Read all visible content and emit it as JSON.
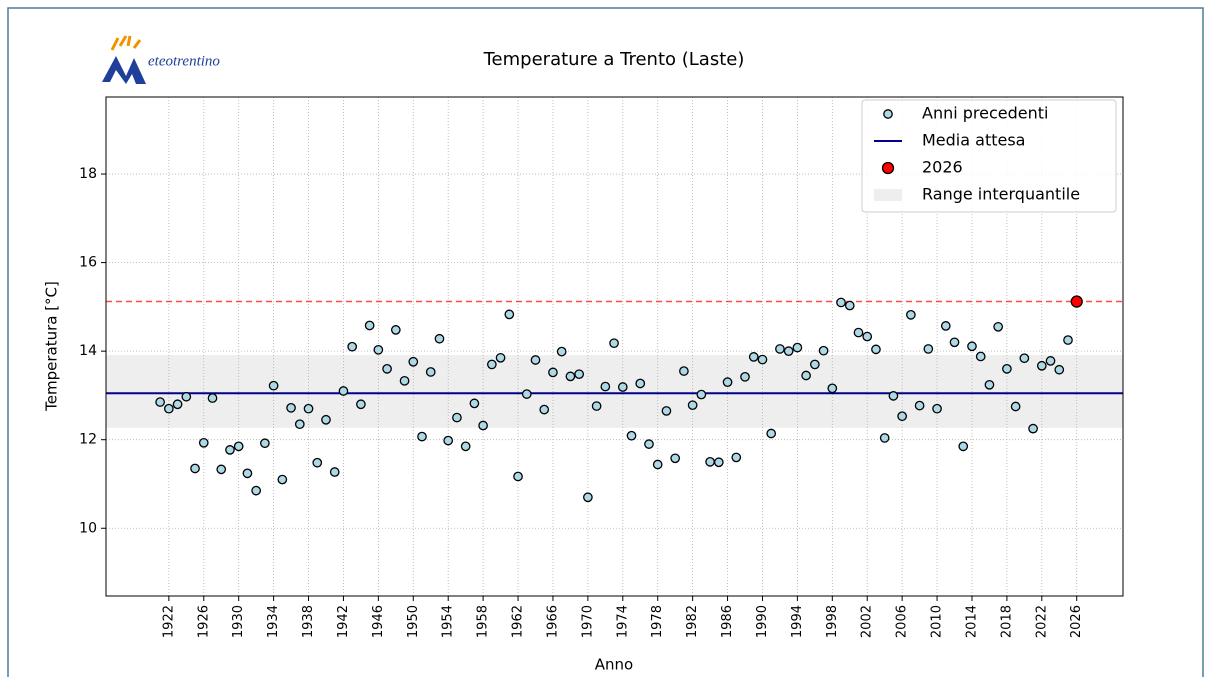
{
  "chart_data": {
    "type": "scatter",
    "title": "Temperature a Trento (Laste)",
    "logo": "eteotrentino",
    "xlabel": "Anno",
    "ylabel": "Temperatura [°C]",
    "xlim": [
      1914.8,
      2031.3
    ],
    "ylim": [
      8.47,
      19.74
    ],
    "xticks": [
      1922,
      1926,
      1930,
      1934,
      1938,
      1942,
      1946,
      1950,
      1954,
      1958,
      1962,
      1966,
      1970,
      1974,
      1978,
      1982,
      1986,
      1990,
      1994,
      1998,
      2002,
      2006,
      2010,
      2014,
      2018,
      2022,
      2026
    ],
    "yticks": [
      10,
      12,
      14,
      16,
      18
    ],
    "grid": true,
    "legend": "upper right",
    "series": [
      {
        "name": "Anni precedenti",
        "color": "#add8e6",
        "x": [
          1921,
          1922,
          1923,
          1924,
          1925,
          1926,
          1927,
          1928,
          1929,
          1930,
          1931,
          1932,
          1933,
          1934,
          1935,
          1936,
          1937,
          1938,
          1939,
          1940,
          1941,
          1942,
          1943,
          1944,
          1945,
          1946,
          1947,
          1948,
          1949,
          1950,
          1951,
          1952,
          1953,
          1954,
          1955,
          1956,
          1957,
          1958,
          1959,
          1960,
          1961,
          1962,
          1963,
          1964,
          1965,
          1966,
          1967,
          1968,
          1969,
          1970,
          1971,
          1972,
          1973,
          1974,
          1975,
          1976,
          1977,
          1978,
          1979,
          1980,
          1981,
          1982,
          1983,
          1984,
          1985,
          1986,
          1987,
          1988,
          1989,
          1990,
          1991,
          1992,
          1993,
          1994,
          1995,
          1996,
          1997,
          1998,
          1999,
          2000,
          2001,
          2002,
          2003,
          2004,
          2005,
          2006,
          2007,
          2008,
          2009,
          2010,
          2011,
          2012,
          2013,
          2014,
          2015,
          2016,
          2017,
          2018,
          2019,
          2020,
          2021,
          2022,
          2023,
          2024,
          2025
        ],
        "values": [
          12.85,
          12.7,
          12.8,
          12.97,
          11.35,
          11.93,
          12.94,
          11.33,
          11.77,
          11.85,
          11.24,
          10.85,
          11.92,
          13.22,
          11.1,
          12.72,
          12.35,
          12.7,
          11.48,
          12.45,
          11.27,
          13.1,
          14.1,
          12.8,
          14.58,
          14.03,
          13.6,
          14.48,
          13.33,
          13.76,
          12.07,
          13.53,
          14.28,
          11.98,
          12.5,
          11.85,
          12.82,
          12.32,
          13.7,
          13.85,
          14.83,
          11.17,
          13.03,
          13.8,
          12.68,
          13.52,
          13.99,
          13.43,
          13.48,
          10.7,
          12.76,
          13.2,
          14.18,
          13.19,
          12.09,
          13.27,
          11.9,
          11.44,
          12.65,
          11.58,
          13.55,
          12.78,
          13.02,
          11.5,
          11.49,
          13.3,
          11.6,
          13.42,
          13.87,
          13.81,
          12.14,
          14.05,
          14.0,
          14.08,
          13.45,
          13.7,
          14.01,
          13.16,
          15.1,
          15.03,
          14.42,
          14.33,
          14.04,
          12.04,
          12.99,
          12.53,
          14.82,
          12.77,
          14.05,
          12.7,
          14.57,
          14.2,
          11.85,
          14.11,
          13.88,
          13.24,
          14.55,
          13.6,
          12.75,
          13.84,
          12.25,
          13.67,
          13.78,
          13.58,
          14.25
        ]
      },
      {
        "name": "2026",
        "color": "#ff0000",
        "x": [
          2026
        ],
        "values": [
          15.12
        ]
      }
    ],
    "mean": {
      "name": "Media attesa",
      "color": "#00008b",
      "value": 13.05
    },
    "band": {
      "name": "Range interquantile",
      "color": "#eeeeee",
      "values": [
        12.27,
        13.91
      ]
    }
  }
}
